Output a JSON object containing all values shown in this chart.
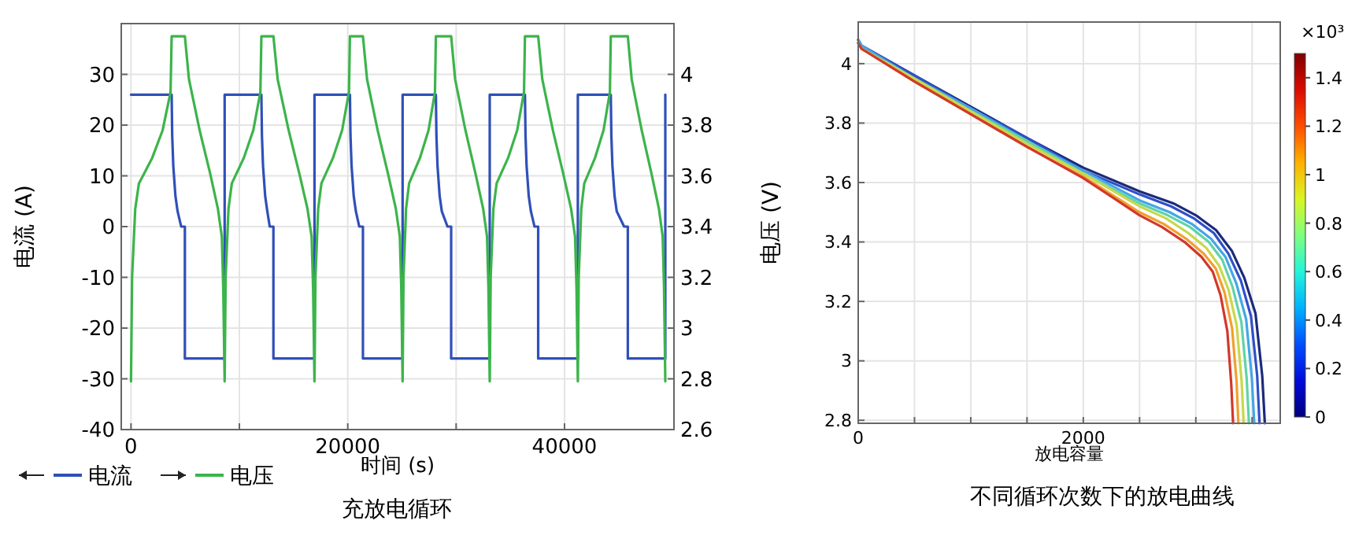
{
  "chart_data": [
    {
      "type": "line",
      "xlabel": "时间 (s)",
      "ylabel": "电流 (A)",
      "xlim": [
        -900,
        50100
      ],
      "ylim": [
        -40,
        40
      ],
      "y2lim": [
        2.6,
        4.2
      ],
      "xticks": [
        0,
        {
          "value": 10000,
          "label": null
        },
        20000,
        {
          "value": 30000,
          "label": null
        },
        40000
      ],
      "yticks": [
        -40,
        -30,
        -20,
        -10,
        0,
        10,
        20,
        30
      ],
      "y2ticks": [
        2.6,
        2.8,
        3,
        3.2,
        3.4,
        3.6,
        3.8,
        4
      ],
      "grid": true,
      "legend": "bottom left",
      "annotations": [
        "充放电循环"
      ],
      "series": [
        {
          "name": "电流",
          "color": "#3050b8",
          "x": [
            0,
            3750,
            3800,
            3900,
            4100,
            4300,
            4630,
            4970,
            4970,
            8640,
            8640,
            12030,
            12080,
            12180,
            12380,
            12580,
            12800,
            13140,
            13140,
            16930,
            16930,
            20200,
            20250,
            20350,
            20550,
            20750,
            21060,
            21400,
            21400,
            25060,
            25060,
            28130,
            28180,
            28280,
            28480,
            28680,
            29200,
            29540,
            29540,
            33100,
            33100,
            36350,
            36400,
            36500,
            36700,
            36900,
            37230,
            37570,
            37570,
            41230,
            41230,
            44270,
            44320,
            44420,
            44620,
            44820,
            45500,
            45840,
            45840,
            49300,
            49300
          ],
          "values": [
            26,
            26,
            18,
            12,
            6,
            3,
            0,
            0,
            -26,
            -26,
            26,
            26,
            18,
            12,
            6,
            3,
            0,
            0,
            -26,
            -26,
            26,
            26,
            18,
            12,
            6,
            3,
            0,
            0,
            -26,
            -26,
            26,
            26,
            18,
            12,
            6,
            3,
            0,
            0,
            -26,
            -26,
            26,
            26,
            18,
            12,
            6,
            3,
            0,
            0,
            -26,
            -26,
            26,
            26,
            18,
            12,
            6,
            3,
            0,
            0,
            -26,
            -26,
            26
          ]
        },
        {
          "name": "电压",
          "color": "#3cb44b",
          "axis": "y2",
          "x": [
            0,
            100,
            390,
            730,
            1950,
            2920,
            3650,
            3750,
            4970,
            5350,
            6330,
            7300,
            8020,
            8380,
            8510,
            8640,
            8732,
            8993,
            9301,
            10403,
            11284,
            11938,
            12030,
            13140,
            13534,
            14542,
            15528,
            16286,
            16665,
            16801,
            16930,
            17018,
            17270,
            17568,
            18630,
            19481,
            20112,
            20200,
            21400,
            21781,
            22754,
            23706,
            24438,
            24804,
            24936,
            25060,
            25143,
            25379,
            25659,
            26656,
            27455,
            28047,
            28130,
            29540,
            29910,
            30857,
            31783,
            32495,
            32851,
            32979,
            33100,
            33188,
            33438,
            33734,
            34790,
            35635,
            36262,
            36350,
            37570,
            37951,
            38924,
            39876,
            40608,
            40974,
            41106,
            41230,
            41312,
            41546,
            41823,
            42811,
            43601,
            44188,
            44270,
            45840,
            46200,
            47120,
            48020,
            48712,
            49058,
            49182,
            49300
          ],
          "values": [
            2.79,
            3.2,
            3.47,
            3.57,
            3.67,
            3.78,
            3.93,
            4.15,
            4.15,
            3.98,
            3.78,
            3.61,
            3.47,
            3.36,
            3.16,
            2.79,
            3.2,
            3.47,
            3.57,
            3.67,
            3.78,
            3.93,
            4.15,
            4.15,
            3.98,
            3.78,
            3.61,
            3.47,
            3.36,
            3.16,
            2.79,
            3.2,
            3.47,
            3.57,
            3.67,
            3.78,
            3.93,
            4.15,
            4.15,
            3.98,
            3.78,
            3.61,
            3.47,
            3.36,
            3.16,
            2.79,
            3.2,
            3.47,
            3.57,
            3.67,
            3.78,
            3.93,
            4.15,
            4.15,
            3.98,
            3.78,
            3.61,
            3.47,
            3.36,
            3.16,
            2.79,
            3.2,
            3.47,
            3.57,
            3.67,
            3.78,
            3.93,
            4.15,
            4.15,
            3.98,
            3.78,
            3.61,
            3.47,
            3.36,
            3.16,
            2.79,
            3.2,
            3.47,
            3.57,
            3.67,
            3.78,
            3.93,
            4.15,
            4.15,
            3.98,
            3.78,
            3.61,
            3.47,
            3.36,
            3.16,
            2.79
          ]
        }
      ]
    },
    {
      "type": "line",
      "xlabel": "放电容量",
      "ylabel": "电压 (V)",
      "clabel": "×10³",
      "xlim": [
        0,
        3750
      ],
      "ylim": [
        2.79,
        4.14
      ],
      "xticks": [
        0,
        {
          "value": 500,
          "label": null
        },
        {
          "value": 1000,
          "label": null
        },
        {
          "value": 1500,
          "label": null
        },
        2000,
        {
          "value": 2500,
          "label": null
        },
        {
          "value": 3000,
          "label": null
        },
        {
          "value": 3500,
          "label": null
        }
      ],
      "yticks": [
        2.8,
        3,
        3.2,
        3.4,
        3.6,
        3.8,
        4
      ],
      "clim": [
        0,
        1.5
      ],
      "cticks": [
        0,
        0.2,
        0.4,
        0.6,
        0.8,
        1,
        1.2,
        1.4
      ],
      "grid": true,
      "annotations": [
        "不同循环次数下的放电曲线"
      ],
      "series": [
        {
          "color": "#1c2a7a",
          "x": [
            0,
            30,
            500,
            1000,
            1500,
            2000,
            2500,
            2800,
            3000,
            3180,
            3320,
            3430,
            3530,
            3590,
            3613
          ],
          "values": [
            4.08,
            4.06,
            3.96,
            3.855,
            3.75,
            3.65,
            3.57,
            3.53,
            3.49,
            3.44,
            3.37,
            3.28,
            3.16,
            2.95,
            2.79
          ]
        },
        {
          "color": "#3050c8",
          "x": [
            0,
            30,
            500,
            1000,
            1500,
            2000,
            2500,
            2780,
            2980,
            3160,
            3290,
            3400,
            3490,
            3545,
            3566
          ],
          "values": [
            4.08,
            4.06,
            3.96,
            3.85,
            3.75,
            3.64,
            3.56,
            3.52,
            3.48,
            3.43,
            3.36,
            3.27,
            3.15,
            2.95,
            2.79
          ]
        },
        {
          "color": "#45a6e6",
          "x": [
            0,
            30,
            500,
            1000,
            1500,
            2000,
            2500,
            2767,
            2967,
            3137,
            3263,
            3360,
            3447,
            3498,
            3519
          ],
          "values": [
            4.08,
            4.06,
            3.95,
            3.85,
            3.74,
            3.64,
            3.54,
            3.5,
            3.46,
            3.41,
            3.35,
            3.26,
            3.14,
            2.94,
            2.79
          ]
        },
        {
          "color": "#5fd3a8",
          "x": [
            0,
            30,
            500,
            1000,
            1500,
            2000,
            2500,
            2750,
            2950,
            3115,
            3235,
            3325,
            3405,
            3452,
            3472
          ],
          "values": [
            4.07,
            4.05,
            3.95,
            3.84,
            3.74,
            3.63,
            3.53,
            3.49,
            3.45,
            3.4,
            3.34,
            3.25,
            3.13,
            2.94,
            2.79
          ]
        },
        {
          "color": "#c8d84a",
          "x": [
            0,
            30,
            500,
            1000,
            1500,
            2000,
            2500,
            2733,
            2933,
            3093,
            3207,
            3290,
            3363,
            3407,
            3425
          ],
          "values": [
            4.07,
            4.05,
            3.95,
            3.84,
            3.73,
            3.63,
            3.52,
            3.48,
            3.43,
            3.38,
            3.32,
            3.24,
            3.12,
            2.93,
            2.79
          ]
        },
        {
          "color": "#f0a030",
          "x": [
            0,
            30,
            500,
            1000,
            1500,
            2000,
            2500,
            2717,
            2917,
            3072,
            3178,
            3255,
            3322,
            3362,
            3378
          ],
          "values": [
            4.07,
            4.05,
            3.94,
            3.83,
            3.72,
            3.62,
            3.5,
            3.46,
            3.41,
            3.36,
            3.31,
            3.23,
            3.11,
            2.93,
            2.79
          ]
        },
        {
          "color": "#d2382a",
          "x": [
            0,
            30,
            500,
            1000,
            1500,
            2000,
            2500,
            2700,
            2900,
            3050,
            3150,
            3220,
            3280,
            3315,
            3331
          ],
          "values": [
            4.07,
            4.05,
            3.94,
            3.83,
            3.72,
            3.615,
            3.49,
            3.45,
            3.4,
            3.35,
            3.3,
            3.22,
            3.1,
            2.92,
            2.79
          ]
        }
      ]
    }
  ]
}
